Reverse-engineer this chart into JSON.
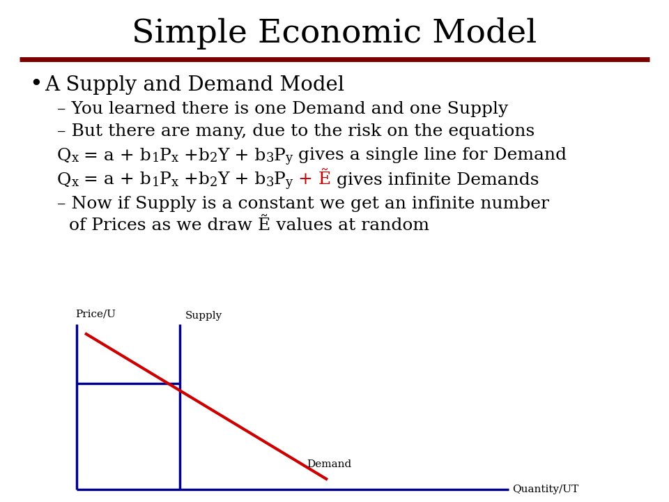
{
  "title": "Simple Economic Model",
  "title_fontsize": 34,
  "title_font": "DejaVu Serif",
  "bg_color": "#ffffff",
  "title_underline_color": "#7b0000",
  "bullet_text": "A Supply and Demand Model",
  "bullet_fontsize": 21,
  "sub_bullet_fontsize": 18,
  "eq_fontsize": 18,
  "eq_color": "#000000",
  "red_color": "#cc0000",
  "dark_blue": "#00008B",
  "supply_label": "Supply",
  "demand_label": "Demand",
  "quantity_label": "Quantity/UT",
  "price_label": "Price/U",
  "sub_bullet1": "You learned there is one Demand and one Supply",
  "sub_bullet2": "But there are many, due to the risk on the equations",
  "last_bullet_line1": "Now if Supply is a constant we get an infinite number",
  "last_bullet_line2": "of Prices as we draw Ẽ values at random"
}
